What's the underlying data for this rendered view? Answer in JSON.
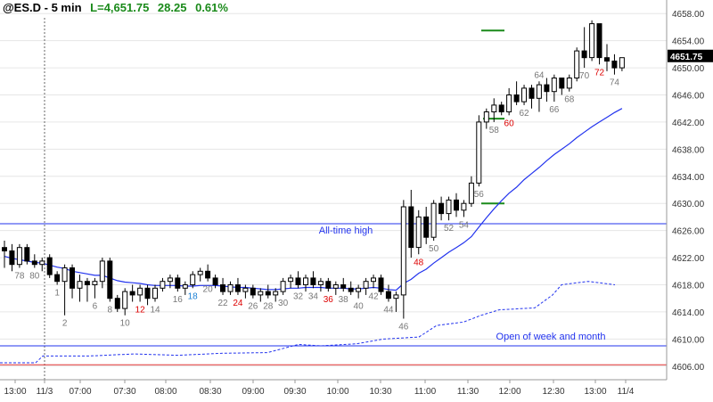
{
  "header": {
    "symbol": "@ES.D - 5 min",
    "last_label": "L=4,651.75",
    "change": "28.25",
    "change_pct": "0.61%"
  },
  "colors": {
    "change": "#1a8a1a",
    "bar": "#000000",
    "ema": "#2233ee",
    "level_line": "#2233ee",
    "red_line": "#e03030",
    "green_marker": "#1a8a1a",
    "label_gray": "#777777",
    "label_red": "#dd0000",
    "label_blue": "#1a7fd4",
    "axis_text": "#333333",
    "price_tag_bg": "#000000"
  },
  "chart_data": {
    "type": "candlestick",
    "timeframe": "5 min",
    "y_axis": {
      "range": [
        4604,
        4660
      ],
      "tick_labels": [
        "4606.00",
        "4610.00",
        "4614.00",
        "4618.00",
        "4622.00",
        "4626.00",
        "4630.00",
        "4634.00",
        "4638.00",
        "4642.00",
        "4646.00",
        "4650.00",
        "4654.00",
        "4658.00"
      ],
      "last_price_label": "4651.75"
    },
    "x_axis": {
      "tick_labels": [
        "13:00",
        "11/3",
        "07:00",
        "07:30",
        "08:00",
        "08:30",
        "09:00",
        "09:30",
        "10:00",
        "10:30",
        "11:00",
        "11:30",
        "12:00",
        "12:30",
        "13:00",
        "11/4"
      ]
    },
    "levels": [
      {
        "label": "All-time high",
        "price": 4627,
        "color": "#2233ee"
      },
      {
        "label": "Open of week and month",
        "price": 4609,
        "color": "#2233ee"
      },
      {
        "label": "",
        "price": 4606.2,
        "color": "#e03030"
      }
    ],
    "bars": [
      {
        "o": 4623.5,
        "h": 4624.5,
        "l": 4620.5,
        "c": 4623.0
      },
      {
        "o": 4623.0,
        "h": 4624.0,
        "l": 4620.0,
        "c": 4621.0
      },
      {
        "o": 4621.0,
        "h": 4624.0,
        "l": 4620.5,
        "c": 4623.5
      },
      {
        "o": 4623.5,
        "h": 4624.0,
        "l": 4621.0,
        "c": 4621.5
      },
      {
        "o": 4621.5,
        "h": 4622.5,
        "l": 4620.5,
        "c": 4621.0
      },
      {
        "o": 4621.0,
        "h": 4622.0,
        "l": 4620.0,
        "c": 4621.5
      },
      {
        "o": 4622.0,
        "h": 4622.5,
        "l": 4619.0,
        "c": 4619.5
      },
      {
        "o": 4619.5,
        "h": 4620.0,
        "l": 4618.0,
        "c": 4618.5
      },
      {
        "o": 4618.5,
        "h": 4621.0,
        "l": 4613.5,
        "c": 4620.5
      },
      {
        "o": 4620.5,
        "h": 4621.0,
        "l": 4616.0,
        "c": 4617.5
      },
      {
        "o": 4617.5,
        "h": 4619.5,
        "l": 4615.5,
        "c": 4618.5
      },
      {
        "o": 4618.5,
        "h": 4619.0,
        "l": 4615.5,
        "c": 4618.0
      },
      {
        "o": 4618.0,
        "h": 4619.0,
        "l": 4616.0,
        "c": 4618.5
      },
      {
        "o": 4618.5,
        "h": 4622.0,
        "l": 4617.5,
        "c": 4621.5
      },
      {
        "o": 4621.5,
        "h": 4622.0,
        "l": 4615.5,
        "c": 4616.0
      },
      {
        "o": 4616.0,
        "h": 4616.5,
        "l": 4614.0,
        "c": 4614.5
      },
      {
        "o": 4614.5,
        "h": 4617.5,
        "l": 4613.5,
        "c": 4617.0
      },
      {
        "o": 4617.0,
        "h": 4618.0,
        "l": 4615.5,
        "c": 4616.5
      },
      {
        "o": 4616.5,
        "h": 4618.0,
        "l": 4615.5,
        "c": 4617.5
      },
      {
        "o": 4617.5,
        "h": 4618.0,
        "l": 4615.0,
        "c": 4616.0
      },
      {
        "o": 4616.0,
        "h": 4618.0,
        "l": 4615.5,
        "c": 4617.5
      },
      {
        "o": 4617.5,
        "h": 4619.0,
        "l": 4617.0,
        "c": 4618.5
      },
      {
        "o": 4618.5,
        "h": 4619.5,
        "l": 4617.5,
        "c": 4619.0
      },
      {
        "o": 4619.0,
        "h": 4619.5,
        "l": 4617.0,
        "c": 4617.5
      },
      {
        "o": 4617.5,
        "h": 4618.5,
        "l": 4616.5,
        "c": 4618.0
      },
      {
        "o": 4618.0,
        "h": 4620.0,
        "l": 4617.5,
        "c": 4619.5
      },
      {
        "o": 4619.5,
        "h": 4620.5,
        "l": 4618.5,
        "c": 4620.0
      },
      {
        "o": 4620.0,
        "h": 4621.0,
        "l": 4618.5,
        "c": 4619.0
      },
      {
        "o": 4619.0,
        "h": 4619.5,
        "l": 4617.5,
        "c": 4618.0
      },
      {
        "o": 4618.0,
        "h": 4619.0,
        "l": 4616.5,
        "c": 4617.0
      },
      {
        "o": 4617.0,
        "h": 4618.5,
        "l": 4616.5,
        "c": 4618.0
      },
      {
        "o": 4618.0,
        "h": 4619.0,
        "l": 4616.5,
        "c": 4617.0
      },
      {
        "o": 4617.0,
        "h": 4618.0,
        "l": 4616.0,
        "c": 4617.5
      },
      {
        "o": 4617.5,
        "h": 4618.0,
        "l": 4616.0,
        "c": 4616.5
      },
      {
        "o": 4616.5,
        "h": 4617.5,
        "l": 4615.5,
        "c": 4617.0
      },
      {
        "o": 4617.0,
        "h": 4618.0,
        "l": 4616.0,
        "c": 4616.5
      },
      {
        "o": 4616.5,
        "h": 4617.5,
        "l": 4615.5,
        "c": 4617.0
      },
      {
        "o": 4617.0,
        "h": 4619.0,
        "l": 4616.5,
        "c": 4618.5
      },
      {
        "o": 4618.5,
        "h": 4619.5,
        "l": 4617.5,
        "c": 4619.0
      },
      {
        "o": 4619.0,
        "h": 4620.0,
        "l": 4617.5,
        "c": 4618.0
      },
      {
        "o": 4618.0,
        "h": 4619.5,
        "l": 4617.0,
        "c": 4619.0
      },
      {
        "o": 4619.0,
        "h": 4620.0,
        "l": 4617.5,
        "c": 4618.0
      },
      {
        "o": 4618.0,
        "h": 4619.0,
        "l": 4617.0,
        "c": 4618.5
      },
      {
        "o": 4618.5,
        "h": 4619.0,
        "l": 4617.0,
        "c": 4617.5
      },
      {
        "o": 4617.5,
        "h": 4618.5,
        "l": 4616.5,
        "c": 4618.0
      },
      {
        "o": 4618.0,
        "h": 4619.0,
        "l": 4617.0,
        "c": 4617.5
      },
      {
        "o": 4617.5,
        "h": 4618.5,
        "l": 4616.5,
        "c": 4617.0
      },
      {
        "o": 4617.0,
        "h": 4618.0,
        "l": 4616.0,
        "c": 4617.5
      },
      {
        "o": 4617.5,
        "h": 4619.0,
        "l": 4616.5,
        "c": 4618.5
      },
      {
        "o": 4618.5,
        "h": 4619.5,
        "l": 4617.5,
        "c": 4619.0
      },
      {
        "o": 4619.0,
        "h": 4619.5,
        "l": 4616.5,
        "c": 4617.0
      },
      {
        "o": 4617.0,
        "h": 4618.0,
        "l": 4615.5,
        "c": 4616.0
      },
      {
        "o": 4616.0,
        "h": 4617.0,
        "l": 4614.0,
        "c": 4616.5
      },
      {
        "o": 4616.5,
        "h": 4630.5,
        "l": 4613.0,
        "c": 4629.5
      },
      {
        "o": 4629.5,
        "h": 4632.0,
        "l": 4622.0,
        "c": 4623.5
      },
      {
        "o": 4623.5,
        "h": 4629.0,
        "l": 4622.5,
        "c": 4628.0
      },
      {
        "o": 4628.0,
        "h": 4629.5,
        "l": 4624.0,
        "c": 4625.0
      },
      {
        "o": 4625.0,
        "h": 4630.5,
        "l": 4624.5,
        "c": 4630.0
      },
      {
        "o": 4630.0,
        "h": 4631.0,
        "l": 4627.5,
        "c": 4628.5
      },
      {
        "o": 4628.5,
        "h": 4631.0,
        "l": 4627.5,
        "c": 4630.5
      },
      {
        "o": 4630.5,
        "h": 4631.5,
        "l": 4628.0,
        "c": 4629.0
      },
      {
        "o": 4629.0,
        "h": 4630.5,
        "l": 4628.0,
        "c": 4630.0
      },
      {
        "o": 4630.0,
        "h": 4634.0,
        "l": 4629.5,
        "c": 4633.0
      },
      {
        "o": 4633.0,
        "h": 4643.0,
        "l": 4632.5,
        "c": 4642.0
      },
      {
        "o": 4642.0,
        "h": 4644.0,
        "l": 4641.0,
        "c": 4643.5
      },
      {
        "o": 4643.5,
        "h": 4645.5,
        "l": 4642.0,
        "c": 4644.5
      },
      {
        "o": 4644.5,
        "h": 4645.0,
        "l": 4643.0,
        "c": 4643.5
      },
      {
        "o": 4643.5,
        "h": 4647.0,
        "l": 4643.0,
        "c": 4646.0
      },
      {
        "o": 4646.0,
        "h": 4648.0,
        "l": 4644.5,
        "c": 4645.0
      },
      {
        "o": 4645.0,
        "h": 4647.5,
        "l": 4644.5,
        "c": 4647.0
      },
      {
        "o": 4647.0,
        "h": 4647.5,
        "l": 4644.0,
        "c": 4645.5
      },
      {
        "o": 4645.5,
        "h": 4648.0,
        "l": 4643.5,
        "c": 4647.5
      },
      {
        "o": 4647.5,
        "h": 4648.5,
        "l": 4645.0,
        "c": 4646.5
      },
      {
        "o": 4646.5,
        "h": 4649.0,
        "l": 4645.0,
        "c": 4648.5
      },
      {
        "o": 4648.5,
        "h": 4648.5,
        "l": 4646.0,
        "c": 4647.0
      },
      {
        "o": 4647.0,
        "h": 4649.0,
        "l": 4646.5,
        "c": 4648.5
      },
      {
        "o": 4648.5,
        "h": 4653.0,
        "l": 4648.0,
        "c": 4652.5
      },
      {
        "o": 4652.5,
        "h": 4656.0,
        "l": 4650.0,
        "c": 4651.5
      },
      {
        "o": 4651.5,
        "h": 4657.0,
        "l": 4651.0,
        "c": 4656.5
      },
      {
        "o": 4656.5,
        "h": 4656.5,
        "l": 4650.5,
        "c": 4651.5
      },
      {
        "o": 4651.5,
        "h": 4653.5,
        "l": 4649.5,
        "c": 4651.0
      },
      {
        "o": 4651.0,
        "h": 4652.0,
        "l": 4649.0,
        "c": 4650.0
      },
      {
        "o": 4650.0,
        "h": 4651.5,
        "l": 4649.5,
        "c": 4651.5
      }
    ],
    "ema": [
      4622.2,
      4621.9,
      4621.7,
      4621.5,
      4621.3,
      4621.2,
      4620.9,
      4620.6,
      4620.4,
      4620.0,
      4619.8,
      4619.6,
      4619.4,
      4619.4,
      4619.0,
      4618.6,
      4618.4,
      4618.3,
      4618.2,
      4618.0,
      4617.9,
      4617.9,
      4617.9,
      4617.9,
      4617.8,
      4617.8,
      4617.9,
      4617.9,
      4617.9,
      4617.8,
      4617.7,
      4617.6,
      4617.6,
      4617.5,
      4617.4,
      4617.3,
      4617.3,
      4617.4,
      4617.5,
      4617.5,
      4617.6,
      4617.6,
      4617.6,
      4617.5,
      4617.5,
      4617.5,
      4617.4,
      4617.4,
      4617.5,
      4617.6,
      4617.5,
      4617.3,
      4617.2,
      4618.2,
      4618.8,
      4619.7,
      4620.3,
      4621.2,
      4622.0,
      4622.8,
      4623.5,
      4624.2,
      4625.1,
      4626.5,
      4627.9,
      4629.2,
      4630.4,
      4631.5,
      4632.4,
      4633.5,
      4634.4,
      4635.3,
      4636.3,
      4637.2,
      4638.0,
      4638.8,
      4639.7,
      4640.5,
      4641.3,
      4642.0,
      4642.7,
      4643.4,
      4644.0
    ]
  },
  "bar_labels": [
    {
      "i": 2,
      "text": "78",
      "color": "gray",
      "pos": "below"
    },
    {
      "i": 4,
      "text": "80",
      "color": "gray",
      "pos": "below"
    },
    {
      "i": 7,
      "text": "1",
      "color": "gray",
      "pos": "below"
    },
    {
      "i": 8,
      "text": "2",
      "color": "gray",
      "pos": "below"
    },
    {
      "i": 12,
      "text": "6",
      "color": "gray",
      "pos": "below"
    },
    {
      "i": 14,
      "text": "8",
      "color": "gray",
      "pos": "below"
    },
    {
      "i": 16,
      "text": "10",
      "color": "gray",
      "pos": "below"
    },
    {
      "i": 18,
      "text": "12",
      "color": "red",
      "pos": "below"
    },
    {
      "i": 20,
      "text": "14",
      "color": "gray",
      "pos": "below"
    },
    {
      "i": 23,
      "text": "16",
      "color": "gray",
      "pos": "below"
    },
    {
      "i": 25,
      "text": "18",
      "color": "blue",
      "pos": "below"
    },
    {
      "i": 27,
      "text": "20",
      "color": "gray",
      "pos": "below"
    },
    {
      "i": 29,
      "text": "22",
      "color": "gray",
      "pos": "below"
    },
    {
      "i": 31,
      "text": "24",
      "color": "red",
      "pos": "below"
    },
    {
      "i": 33,
      "text": "26",
      "color": "gray",
      "pos": "below"
    },
    {
      "i": 35,
      "text": "28",
      "color": "gray",
      "pos": "below"
    },
    {
      "i": 37,
      "text": "30",
      "color": "gray",
      "pos": "below"
    },
    {
      "i": 39,
      "text": "32",
      "color": "gray",
      "pos": "below"
    },
    {
      "i": 41,
      "text": "34",
      "color": "gray",
      "pos": "below"
    },
    {
      "i": 43,
      "text": "36",
      "color": "red",
      "pos": "below"
    },
    {
      "i": 45,
      "text": "38",
      "color": "gray",
      "pos": "below"
    },
    {
      "i": 47,
      "text": "40",
      "color": "gray",
      "pos": "below"
    },
    {
      "i": 49,
      "text": "42",
      "color": "gray",
      "pos": "below"
    },
    {
      "i": 51,
      "text": "44",
      "color": "gray",
      "pos": "below"
    },
    {
      "i": 53,
      "text": "46",
      "color": "gray",
      "pos": "below"
    },
    {
      "i": 55,
      "text": "48",
      "color": "red",
      "pos": "below"
    },
    {
      "i": 57,
      "text": "50",
      "color": "gray",
      "pos": "below"
    },
    {
      "i": 59,
      "text": "52",
      "color": "gray",
      "pos": "below"
    },
    {
      "i": 61,
      "text": "54",
      "color": "gray",
      "pos": "below"
    },
    {
      "i": 63,
      "text": "56",
      "color": "gray",
      "pos": "below"
    },
    {
      "i": 65,
      "text": "58",
      "color": "gray",
      "pos": "below"
    },
    {
      "i": 67,
      "text": "60",
      "color": "red",
      "pos": "below"
    },
    {
      "i": 69,
      "text": "62",
      "color": "gray",
      "pos": "below"
    },
    {
      "i": 71,
      "text": "64",
      "color": "gray",
      "pos": "above"
    },
    {
      "i": 73,
      "text": "66",
      "color": "gray",
      "pos": "below"
    },
    {
      "i": 75,
      "text": "68",
      "color": "gray",
      "pos": "below"
    },
    {
      "i": 77,
      "text": "70",
      "color": "gray",
      "pos": "below"
    },
    {
      "i": 79,
      "text": "72",
      "color": "red",
      "pos": "below"
    },
    {
      "i": 81,
      "text": "74",
      "color": "gray",
      "pos": "below"
    }
  ],
  "annotations": {
    "all_time_high": "All-time high",
    "open_week_month": "Open of week and month"
  }
}
